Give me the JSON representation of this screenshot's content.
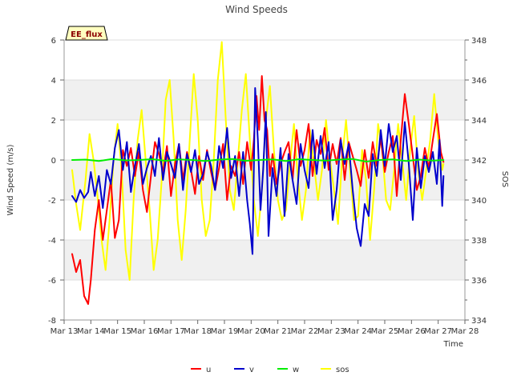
{
  "chart_data": {
    "type": "line",
    "title": "Wind Speeds",
    "badge": "EE_flux",
    "xlabel": "Time",
    "ylabel": "Wind Speed (m/s)",
    "y2label": "SOS",
    "xlim": [
      13,
      28
    ],
    "ylim": [
      -8,
      6
    ],
    "y2lim": [
      334,
      348
    ],
    "x_tick_values": [
      13,
      14,
      15,
      16,
      17,
      18,
      19,
      20,
      21,
      22,
      23,
      24,
      25,
      26,
      27,
      28
    ],
    "x_tick_labels": [
      "Mar 13",
      "Mar 14",
      "Mar 15",
      "Mar 16",
      "Mar 17",
      "Mar 18",
      "Mar 19",
      "Mar 20",
      "Mar 21",
      "Mar 22",
      "Mar 23",
      "Mar 24",
      "Mar 25",
      "Mar 26",
      "Mar 27",
      "Mar 28"
    ],
    "y_ticks": [
      -8,
      -6,
      -4,
      -2,
      0,
      2,
      4,
      6
    ],
    "y2_ticks": [
      334,
      336,
      338,
      340,
      342,
      344,
      346,
      348
    ],
    "colors": {
      "u": "#ff0000",
      "v": "#0000cc",
      "w": "#00ee00",
      "sos": "#ffff00",
      "band": "#f0f0f0",
      "grid": "#dddddd",
      "badge_fill": "#ffffc0"
    },
    "series": [
      {
        "name": "u",
        "axis": "left",
        "x": [
          13.3,
          13.45,
          13.6,
          13.75,
          13.9,
          14.0,
          14.15,
          14.3,
          14.45,
          14.6,
          14.75,
          14.9,
          15.05,
          15.2,
          15.35,
          15.5,
          15.65,
          15.8,
          15.95,
          16.1,
          16.25,
          16.4,
          16.55,
          16.7,
          16.85,
          17.0,
          17.15,
          17.3,
          17.45,
          17.6,
          17.75,
          17.9,
          18.05,
          18.2,
          18.35,
          18.5,
          18.65,
          18.8,
          18.95,
          19.1,
          19.25,
          19.4,
          19.55,
          19.7,
          19.85,
          20.0,
          20.1,
          20.2,
          20.3,
          20.4,
          20.5,
          20.6,
          20.7,
          20.8,
          20.95,
          21.1,
          21.25,
          21.4,
          21.55,
          21.7,
          21.85,
          22.0,
          22.15,
          22.3,
          22.45,
          22.6,
          22.75,
          22.9,
          23.05,
          23.2,
          23.35,
          23.5,
          23.65,
          23.8,
          23.95,
          24.1,
          24.25,
          24.4,
          24.55,
          24.7,
          24.85,
          25.0,
          25.15,
          25.3,
          25.45,
          25.6,
          25.75,
          25.9,
          26.05,
          26.2,
          26.35,
          26.5,
          26.65,
          26.8,
          26.95,
          27.1,
          27.2
        ],
        "values": [
          -4.7,
          -5.6,
          -5.0,
          -6.8,
          -7.2,
          -6.0,
          -3.5,
          -2.0,
          -4.0,
          -2.5,
          -1.0,
          -3.9,
          -3.0,
          0.5,
          -0.3,
          0.6,
          -0.8,
          0.4,
          -1.5,
          -2.6,
          -0.8,
          0.9,
          0.3,
          -0.6,
          0.7,
          -1.8,
          -0.2,
          0.8,
          -1.0,
          0.4,
          -0.5,
          -1.7,
          0.2,
          -1.0,
          0.5,
          -0.6,
          -1.5,
          -0.4,
          0.8,
          -2.0,
          -0.3,
          -0.8,
          0.4,
          -1.2,
          0.9,
          -0.5,
          1.0,
          3.2,
          1.5,
          4.2,
          2.0,
          1.5,
          -0.8,
          0.3,
          -1.2,
          -0.2,
          0.4,
          0.9,
          -1.0,
          1.5,
          -0.3,
          0.5,
          1.8,
          -0.8,
          1.0,
          0.3,
          1.6,
          -0.5,
          0.8,
          -0.2,
          1.1,
          -1.0,
          0.9,
          0.2,
          -0.5,
          -1.3,
          0.5,
          -0.9,
          0.9,
          -0.3,
          1.1,
          -0.6,
          0.4,
          1.2,
          -1.8,
          1.0,
          3.3,
          1.8,
          0.2,
          -1.5,
          -0.8,
          0.6,
          -0.4,
          1.0,
          2.3,
          0.4,
          -0.1
        ]
      },
      {
        "name": "v",
        "axis": "left",
        "x": [
          13.3,
          13.45,
          13.6,
          13.75,
          13.9,
          14.0,
          14.15,
          14.3,
          14.45,
          14.6,
          14.75,
          14.9,
          15.05,
          15.2,
          15.35,
          15.5,
          15.65,
          15.8,
          15.95,
          16.1,
          16.25,
          16.4,
          16.55,
          16.7,
          16.85,
          17.0,
          17.15,
          17.3,
          17.45,
          17.6,
          17.75,
          17.9,
          18.05,
          18.2,
          18.35,
          18.5,
          18.65,
          18.8,
          18.95,
          19.1,
          19.25,
          19.4,
          19.55,
          19.7,
          19.85,
          19.95,
          20.05,
          20.15,
          20.25,
          20.35,
          20.45,
          20.55,
          20.65,
          20.8,
          20.95,
          21.1,
          21.25,
          21.4,
          21.55,
          21.7,
          21.85,
          22.0,
          22.15,
          22.3,
          22.45,
          22.6,
          22.75,
          22.9,
          23.05,
          23.2,
          23.35,
          23.5,
          23.65,
          23.8,
          23.95,
          24.1,
          24.25,
          24.4,
          24.55,
          24.7,
          24.85,
          25.0,
          25.15,
          25.3,
          25.45,
          25.6,
          25.75,
          25.9,
          26.05,
          26.2,
          26.35,
          26.5,
          26.65,
          26.8,
          26.95,
          27.05,
          27.15,
          27.2
        ],
        "values": [
          -1.8,
          -2.1,
          -1.5,
          -1.9,
          -1.6,
          -0.6,
          -1.8,
          -0.8,
          -2.4,
          -0.5,
          -1.2,
          0.6,
          1.5,
          -0.5,
          0.9,
          -1.6,
          -0.3,
          0.8,
          -1.2,
          -0.4,
          0.2,
          -0.8,
          1.1,
          -1.0,
          0.4,
          -0.2,
          -0.9,
          0.8,
          -1.5,
          0.3,
          -0.6,
          0.5,
          -1.2,
          -0.7,
          0.4,
          -0.3,
          -1.5,
          0.7,
          -0.4,
          1.6,
          -0.9,
          0.2,
          -1.8,
          0.4,
          -2.0,
          -3.2,
          -4.7,
          3.6,
          1.0,
          -2.5,
          -0.5,
          2.4,
          -3.8,
          -0.4,
          -1.8,
          0.6,
          -2.8,
          0.3,
          -1.0,
          -2.2,
          0.8,
          -0.5,
          -1.4,
          1.5,
          -0.7,
          1.2,
          -0.4,
          0.9,
          -3.0,
          -1.5,
          1.0,
          -0.2,
          0.8,
          -1.5,
          -3.4,
          -4.3,
          -2.2,
          -2.8,
          0.3,
          -0.8,
          1.5,
          -0.3,
          1.8,
          0.4,
          1.2,
          -1.0,
          1.9,
          -0.2,
          -3.0,
          0.6,
          -1.4,
          0.2,
          -0.6,
          0.4,
          -1.2,
          1.0,
          -2.3,
          -0.8
        ]
      },
      {
        "name": "w",
        "axis": "left",
        "x": [
          13.3,
          13.8,
          14.3,
          14.8,
          15.3,
          15.8,
          16.3,
          16.8,
          17.3,
          17.8,
          18.3,
          18.8,
          19.3,
          19.8,
          20.3,
          20.8,
          21.3,
          21.8,
          22.3,
          22.8,
          23.3,
          23.8,
          24.3,
          24.8,
          25.3,
          25.8,
          26.3,
          26.8,
          27.2
        ],
        "values": [
          0.0,
          0.02,
          -0.05,
          0.05,
          -0.02,
          0.0,
          0.04,
          -0.04,
          0.03,
          0.0,
          -0.05,
          0.02,
          0.05,
          -0.04,
          0.0,
          0.03,
          -0.05,
          0.04,
          0.0,
          -0.03,
          0.02,
          0.05,
          -0.08,
          0.0,
          0.03,
          -0.05,
          0.02,
          -0.03,
          0.0
        ]
      },
      {
        "name": "sos",
        "axis": "right",
        "x": [
          13.3,
          13.45,
          13.6,
          13.8,
          13.95,
          14.1,
          14.25,
          14.4,
          14.55,
          14.7,
          14.85,
          15.0,
          15.15,
          15.3,
          15.45,
          15.6,
          15.75,
          15.9,
          16.05,
          16.2,
          16.35,
          16.5,
          16.65,
          16.8,
          16.95,
          17.1,
          17.25,
          17.4,
          17.55,
          17.7,
          17.85,
          18.0,
          18.15,
          18.3,
          18.45,
          18.6,
          18.75,
          18.9,
          19.05,
          19.2,
          19.35,
          19.5,
          19.65,
          19.8,
          19.95,
          20.1,
          20.25,
          20.4,
          20.55,
          20.7,
          20.85,
          21.0,
          21.15,
          21.3,
          21.45,
          21.6,
          21.75,
          21.9,
          22.05,
          22.2,
          22.35,
          22.5,
          22.65,
          22.8,
          22.95,
          23.1,
          23.25,
          23.4,
          23.55,
          23.7,
          23.85,
          24.0,
          24.15,
          24.3,
          24.45,
          24.6,
          24.75,
          24.9,
          25.05,
          25.2,
          25.35,
          25.5,
          25.65,
          25.8,
          25.95,
          26.1,
          26.25,
          26.4,
          26.55,
          26.7,
          26.85,
          27.0,
          27.15,
          27.2
        ],
        "values": [
          341.5,
          339.8,
          338.5,
          341.0,
          343.3,
          342.0,
          340.2,
          338.0,
          336.5,
          339.0,
          342.0,
          343.8,
          341.5,
          337.5,
          336.0,
          340.0,
          343.0,
          344.5,
          342.0,
          339.5,
          336.5,
          338.0,
          341.0,
          345.0,
          346.0,
          343.0,
          339.0,
          337.0,
          339.5,
          343.0,
          346.3,
          344.0,
          340.0,
          338.2,
          339.0,
          342.0,
          346.0,
          347.9,
          344.0,
          340.5,
          339.5,
          342.0,
          344.5,
          346.3,
          343.0,
          340.0,
          338.2,
          340.5,
          344.0,
          345.7,
          342.5,
          340.0,
          339.0,
          339.5,
          341.8,
          343.8,
          341.0,
          339.0,
          340.5,
          343.5,
          341.8,
          340.0,
          341.5,
          344.0,
          342.0,
          340.5,
          338.8,
          342.0,
          344.0,
          341.5,
          339.0,
          339.2,
          342.5,
          341.0,
          338.0,
          340.5,
          343.8,
          342.5,
          340.0,
          339.5,
          341.5,
          343.8,
          342.0,
          340.0,
          342.5,
          344.2,
          341.5,
          340.0,
          341.5,
          343.0,
          345.3,
          343.0,
          341.5,
          341.8
        ]
      }
    ],
    "legend": {
      "placement": "bottom-center",
      "entries": [
        "u",
        "v",
        "w",
        "sos"
      ]
    }
  }
}
